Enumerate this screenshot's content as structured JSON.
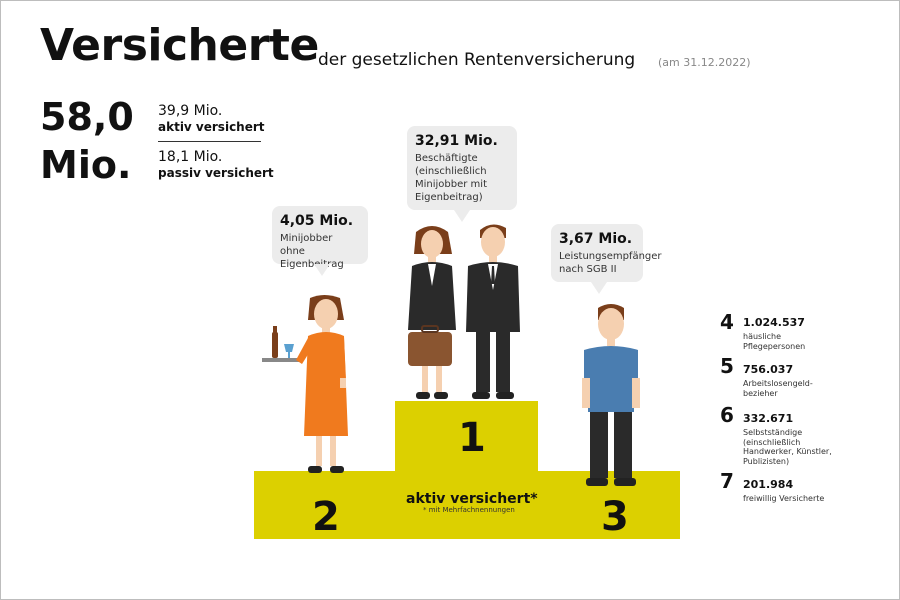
{
  "header": {
    "title": "Versicherte",
    "subtitle": "der gesetzlichen Rentenversicherung",
    "date": "(am 31.12.2022)"
  },
  "totals": {
    "total_line1": "58,0",
    "total_line2": "Mio.",
    "aktiv_value": "39,9 Mio.",
    "aktiv_label": "aktiv versichert",
    "passiv_value": "18,1 Mio.",
    "passiv_label": "passiv versichert"
  },
  "bubbles": {
    "minijobber": {
      "value": "4,05 Mio.",
      "label": "Minijobber ohne Eigenbeitrag"
    },
    "beschaeftigte": {
      "value": "32,91 Mio.",
      "label": "Beschäftigte (einschließlich Minijobber mit Eigenbeitrag)"
    },
    "leistung": {
      "value": "3,67 Mio.",
      "label": "Leistungsempfänger nach SGB II"
    }
  },
  "podium": {
    "first": "1",
    "second": "2",
    "third": "3",
    "label": "aktiv versichert*",
    "note": "* mit Mehrfachnennungen"
  },
  "others": [
    {
      "rank": "4",
      "value": "1.024.537",
      "label": "häusliche Pflegepersonen"
    },
    {
      "rank": "5",
      "value": "756.037",
      "label": "Arbeitslosengeld-bezieher"
    },
    {
      "rank": "6",
      "value": "332.671",
      "label": "Selbstständige (einschließlich Handwerker, Künstler, Publizisten)"
    },
    {
      "rank": "7",
      "value": "201.984",
      "label": "freiwillig Versicherte"
    }
  ],
  "colors": {
    "podium": "#dcd000",
    "bubble": "#ececec",
    "dress": "#f07a1e",
    "shirt_blue": "#4a7db0",
    "suit": "#2a2a2a",
    "briefcase": "#8a5530"
  }
}
